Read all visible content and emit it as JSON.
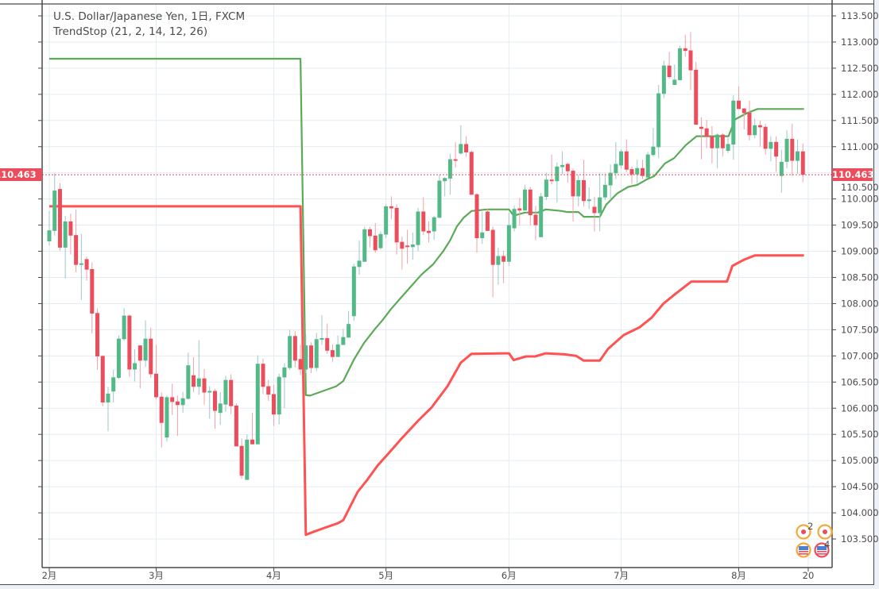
{
  "header": {
    "symbol_line": "U.S. Dollar/Japanese Yen, 1日, FXCM",
    "indicator_line": "TrendStop (21, 2, 14, 12, 26)"
  },
  "last_price": {
    "label": "110.463",
    "value": 110.463,
    "color": "#eb4d5c"
  },
  "events": {
    "badge_top": "2",
    "badge_bottom": "4"
  },
  "colors": {
    "up": "#53b987",
    "down": "#eb4d5c",
    "up_wick": "#9fc7c6",
    "down_wick": "#f3a0a9",
    "trend_green": "#5aaa57",
    "trend_red": "#ff5252",
    "grid": "#e3ecf2"
  },
  "chart_data": {
    "type": "candlestick",
    "title": "U.S. Dollar/Japanese Yen, 1日, FXCM",
    "ylim": [
      103.3,
      113.65
    ],
    "grid": true,
    "y_ticks": [
      "103.500",
      "104.000",
      "104.500",
      "105.000",
      "105.500",
      "106.000",
      "106.500",
      "107.000",
      "107.500",
      "108.000",
      "108.500",
      "109.000",
      "109.500",
      "110.000",
      "110.500",
      "111.000",
      "111.500",
      "112.000",
      "112.500",
      "113.000",
      "113.500"
    ],
    "x_ticks": [
      {
        "label": "2月",
        "bar": 0
      },
      {
        "label": "3月",
        "bar": 20
      },
      {
        "label": "4月",
        "bar": 42
      },
      {
        "label": "5月",
        "bar": 63
      },
      {
        "label": "6月",
        "bar": 86
      },
      {
        "label": "7月",
        "bar": 107
      },
      {
        "label": "8月",
        "bar": 129
      },
      {
        "label": "20",
        "bar": 142
      }
    ],
    "ohlc_fields": [
      "open",
      "high",
      "low",
      "close"
    ],
    "candles": [
      [
        109.19,
        109.77,
        109.11,
        109.4
      ],
      [
        109.39,
        110.49,
        109.3,
        110.16
      ],
      [
        110.19,
        110.3,
        109.01,
        109.07
      ],
      [
        109.07,
        109.68,
        108.48,
        109.57
      ],
      [
        109.57,
        109.72,
        108.94,
        109.3
      ],
      [
        109.31,
        109.8,
        108.6,
        108.74
      ],
      [
        108.74,
        109.33,
        108.07,
        108.77
      ],
      [
        108.85,
        108.9,
        108.44,
        108.65
      ],
      [
        108.66,
        108.79,
        107.43,
        107.81
      ],
      [
        107.82,
        107.91,
        106.73,
        106.99
      ],
      [
        107.0,
        107.01,
        106.04,
        106.11
      ],
      [
        106.11,
        106.41,
        105.56,
        106.28
      ],
      [
        106.32,
        106.74,
        106.11,
        106.59
      ],
      [
        106.58,
        107.39,
        106.56,
        107.33
      ],
      [
        107.32,
        107.91,
        107.29,
        107.77
      ],
      [
        107.77,
        107.79,
        106.6,
        106.74
      ],
      [
        106.74,
        107.13,
        106.51,
        106.86
      ],
      [
        107.2,
        107.2,
        106.38,
        106.91
      ],
      [
        106.91,
        107.68,
        106.79,
        107.33
      ],
      [
        107.33,
        107.54,
        106.58,
        106.65
      ],
      [
        106.66,
        107.21,
        106.17,
        106.21
      ],
      [
        106.22,
        106.3,
        105.25,
        105.72
      ],
      [
        105.44,
        106.24,
        105.36,
        106.21
      ],
      [
        106.21,
        106.47,
        105.87,
        106.12
      ],
      [
        106.13,
        106.24,
        105.47,
        106.06
      ],
      [
        106.06,
        106.31,
        105.91,
        106.19
      ],
      [
        106.18,
        107.06,
        106.17,
        106.82
      ],
      [
        106.63,
        106.98,
        106.31,
        106.41
      ],
      [
        106.41,
        107.3,
        106.26,
        106.57
      ],
      [
        106.57,
        106.75,
        106.07,
        106.3
      ],
      [
        106.3,
        106.42,
        105.8,
        106.33
      ],
      [
        106.33,
        106.37,
        105.61,
        105.95
      ],
      [
        105.91,
        106.31,
        105.68,
        106.09
      ],
      [
        106.07,
        106.62,
        105.93,
        106.54
      ],
      [
        106.54,
        106.65,
        105.89,
        106.04
      ],
      [
        106.05,
        106.09,
        105.27,
        105.27
      ],
      [
        105.28,
        105.42,
        104.65,
        104.71
      ],
      [
        104.63,
        105.5,
        104.63,
        105.4
      ],
      [
        105.4,
        105.91,
        105.31,
        105.31
      ],
      [
        105.31,
        107.01,
        105.31,
        106.85
      ],
      [
        106.85,
        106.94,
        106.27,
        106.41
      ],
      [
        106.42,
        106.54,
        106.14,
        106.26
      ],
      [
        106.27,
        106.45,
        105.66,
        105.88
      ],
      [
        105.88,
        106.66,
        105.69,
        106.6
      ],
      [
        106.59,
        106.86,
        106.0,
        106.78
      ],
      [
        106.77,
        107.5,
        106.73,
        107.38
      ],
      [
        107.38,
        107.47,
        106.78,
        106.91
      ],
      [
        106.94,
        107.21,
        106.63,
        106.74
      ],
      [
        106.74,
        107.41,
        106.67,
        107.2
      ],
      [
        107.2,
        107.26,
        106.67,
        106.77
      ],
      [
        106.77,
        107.44,
        106.71,
        107.32
      ],
      [
        107.31,
        107.78,
        107.21,
        107.34
      ],
      [
        107.34,
        107.62,
        107.04,
        107.1
      ],
      [
        107.11,
        107.22,
        106.89,
        106.98
      ],
      [
        106.98,
        107.39,
        106.98,
        107.22
      ],
      [
        107.21,
        107.52,
        107.21,
        107.36
      ],
      [
        107.35,
        107.86,
        107.35,
        107.61
      ],
      [
        107.76,
        108.76,
        107.67,
        108.71
      ],
      [
        108.7,
        109.21,
        108.55,
        108.82
      ],
      [
        108.8,
        109.47,
        108.8,
        109.42
      ],
      [
        109.42,
        109.47,
        109.08,
        109.29
      ],
      [
        109.3,
        109.54,
        108.97,
        109.02
      ],
      [
        109.06,
        109.38,
        109.03,
        109.33
      ],
      [
        109.32,
        109.9,
        109.25,
        109.86
      ],
      [
        109.86,
        110.05,
        109.61,
        109.82
      ],
      [
        109.83,
        109.9,
        108.94,
        109.17
      ],
      [
        109.18,
        109.28,
        108.65,
        109.05
      ],
      [
        109.11,
        109.41,
        108.76,
        109.08
      ],
      [
        109.08,
        109.36,
        108.84,
        109.13
      ],
      [
        109.12,
        109.83,
        109.0,
        109.76
      ],
      [
        109.76,
        110.03,
        109.31,
        109.38
      ],
      [
        109.39,
        109.57,
        109.17,
        109.35
      ],
      [
        109.38,
        109.68,
        109.22,
        109.65
      ],
      [
        109.64,
        110.46,
        109.64,
        110.35
      ],
      [
        110.34,
        110.42,
        110.05,
        110.4
      ],
      [
        110.39,
        110.87,
        110.08,
        110.76
      ],
      [
        110.76,
        111.09,
        110.6,
        110.73
      ],
      [
        110.87,
        111.41,
        110.85,
        111.05
      ],
      [
        111.05,
        111.2,
        110.81,
        110.89
      ],
      [
        110.9,
        110.93,
        110.08,
        110.08
      ],
      [
        110.09,
        110.11,
        108.97,
        109.25
      ],
      [
        109.25,
        109.75,
        109.14,
        109.36
      ],
      [
        109.76,
        109.81,
        109.39,
        109.39
      ],
      [
        109.41,
        109.47,
        108.12,
        108.74
      ],
      [
        108.74,
        109.07,
        108.36,
        108.91
      ],
      [
        108.91,
        109.01,
        108.39,
        108.8
      ],
      [
        108.8,
        109.74,
        108.72,
        109.5
      ],
      [
        109.44,
        109.87,
        109.38,
        109.81
      ],
      [
        109.82,
        110.02,
        109.49,
        109.78
      ],
      [
        109.78,
        110.27,
        109.78,
        110.18
      ],
      [
        110.18,
        110.23,
        109.49,
        109.69
      ],
      [
        109.7,
        109.87,
        109.21,
        109.5
      ],
      [
        109.27,
        110.12,
        109.27,
        110.05
      ],
      [
        110.04,
        110.5,
        109.98,
        110.37
      ],
      [
        110.37,
        110.85,
        110.28,
        110.34
      ],
      [
        110.34,
        110.7,
        109.93,
        110.62
      ],
      [
        110.61,
        110.91,
        110.47,
        110.65
      ],
      [
        110.67,
        110.69,
        110.31,
        110.53
      ],
      [
        110.54,
        110.58,
        109.57,
        110.05
      ],
      [
        110.05,
        110.46,
        109.86,
        110.36
      ],
      [
        110.36,
        110.75,
        109.86,
        109.96
      ],
      [
        109.96,
        110.22,
        109.81,
        109.99
      ],
      [
        109.85,
        110.04,
        109.38,
        109.73
      ],
      [
        109.73,
        110.49,
        109.38,
        110.03
      ],
      [
        110.03,
        110.49,
        109.98,
        110.27
      ],
      [
        110.26,
        110.66,
        109.98,
        110.5
      ],
      [
        110.49,
        111.09,
        110.38,
        110.67
      ],
      [
        110.64,
        110.95,
        110.58,
        110.91
      ],
      [
        110.91,
        111.14,
        110.51,
        110.56
      ],
      [
        110.57,
        110.62,
        110.29,
        110.47
      ],
      [
        110.47,
        110.75,
        110.29,
        110.59
      ],
      [
        110.59,
        110.75,
        110.38,
        110.44
      ],
      [
        110.41,
        110.9,
        110.41,
        110.85
      ],
      [
        110.84,
        111.36,
        110.81,
        111.0
      ],
      [
        110.99,
        112.18,
        110.78,
        112.02
      ],
      [
        112.01,
        112.64,
        111.93,
        112.55
      ],
      [
        112.55,
        112.81,
        112.3,
        112.33
      ],
      [
        112.18,
        112.57,
        112.18,
        112.28
      ],
      [
        112.27,
        112.93,
        112.27,
        112.88
      ],
      [
        112.88,
        113.14,
        112.72,
        112.83
      ],
      [
        112.84,
        113.19,
        112.08,
        112.46
      ],
      [
        112.47,
        112.62,
        111.42,
        111.42
      ],
      [
        111.38,
        111.56,
        110.76,
        111.34
      ],
      [
        111.35,
        111.51,
        110.97,
        111.19
      ],
      [
        111.2,
        111.39,
        110.68,
        110.97
      ],
      [
        110.97,
        111.26,
        110.59,
        111.23
      ],
      [
        111.23,
        111.26,
        110.81,
        110.97
      ],
      [
        110.92,
        111.17,
        110.88,
        111.05
      ],
      [
        111.04,
        111.98,
        110.75,
        111.88
      ],
      [
        111.88,
        112.15,
        111.72,
        111.72
      ],
      [
        111.73,
        111.74,
        111.33,
        111.64
      ],
      [
        111.65,
        111.88,
        111.12,
        111.22
      ],
      [
        111.22,
        111.54,
        111.16,
        111.41
      ],
      [
        111.41,
        111.5,
        111.0,
        111.37
      ],
      [
        111.38,
        111.44,
        110.85,
        110.96
      ],
      [
        110.96,
        111.2,
        110.72,
        111.09
      ],
      [
        111.09,
        111.2,
        110.52,
        110.81
      ],
      [
        110.44,
        110.94,
        110.12,
        110.71
      ],
      [
        110.71,
        111.32,
        110.59,
        111.15
      ],
      [
        111.15,
        111.44,
        110.44,
        110.73
      ],
      [
        110.73,
        111.14,
        110.48,
        110.91
      ],
      [
        110.91,
        111.06,
        110.32,
        110.463
      ]
    ],
    "lines": [
      {
        "color": "#5aaa57",
        "points": [
          [
            0,
            112.68
          ],
          [
            47,
            112.68
          ],
          [
            48,
            106.25
          ],
          [
            48.8,
            106.24
          ],
          [
            53.7,
            106.42
          ],
          [
            55,
            106.52
          ],
          [
            57,
            106.93
          ],
          [
            58.9,
            107.25
          ],
          [
            60.9,
            107.51
          ],
          [
            62.4,
            107.69
          ],
          [
            63.9,
            107.89
          ],
          [
            65.6,
            108.09
          ],
          [
            67.6,
            108.32
          ],
          [
            69.6,
            108.55
          ],
          [
            71.8,
            108.75
          ],
          [
            73.7,
            109.0
          ],
          [
            75,
            109.21
          ],
          [
            76.3,
            109.48
          ],
          [
            77.5,
            109.64
          ],
          [
            79,
            109.77
          ],
          [
            81.9,
            109.8
          ],
          [
            86,
            109.8
          ],
          [
            86.9,
            109.68
          ],
          [
            89,
            109.74
          ],
          [
            91.4,
            109.74
          ],
          [
            92.9,
            109.8
          ],
          [
            95.9,
            109.77
          ],
          [
            96.8,
            109.75
          ],
          [
            99,
            109.75
          ],
          [
            100,
            109.66
          ],
          [
            103,
            109.66
          ],
          [
            104.2,
            109.89
          ],
          [
            106.3,
            110.11
          ],
          [
            108.3,
            110.23
          ],
          [
            110,
            110.27
          ],
          [
            111.7,
            110.37
          ],
          [
            113.2,
            110.44
          ],
          [
            115.2,
            110.68
          ],
          [
            116.9,
            110.78
          ],
          [
            119.1,
            111.03
          ],
          [
            121.1,
            111.2
          ],
          [
            127.1,
            111.2
          ],
          [
            128.3,
            111.52
          ],
          [
            130.5,
            111.64
          ],
          [
            132.5,
            111.72
          ],
          [
            141.2,
            111.72
          ]
        ]
      },
      {
        "color": "#ff5252",
        "points": [
          [
            0,
            109.86
          ],
          [
            47,
            109.86
          ],
          [
            48,
            103.58
          ],
          [
            49.5,
            103.64
          ],
          [
            51.7,
            103.72
          ],
          [
            54,
            103.8
          ],
          [
            55,
            103.86
          ],
          [
            56.2,
            104.1
          ],
          [
            57.7,
            104.4
          ],
          [
            59.5,
            104.63
          ],
          [
            61.4,
            104.9
          ],
          [
            63.6,
            105.15
          ],
          [
            65.9,
            105.42
          ],
          [
            69.1,
            105.77
          ],
          [
            71.5,
            106.01
          ],
          [
            74.5,
            106.42
          ],
          [
            77,
            106.87
          ],
          [
            79,
            107.04
          ],
          [
            86,
            107.05
          ],
          [
            86.9,
            106.92
          ],
          [
            89.2,
            106.99
          ],
          [
            90.9,
            106.99
          ],
          [
            92.9,
            107.05
          ],
          [
            96.4,
            107.03
          ],
          [
            98.6,
            107.0
          ],
          [
            100,
            106.91
          ],
          [
            103,
            106.91
          ],
          [
            104.5,
            107.13
          ],
          [
            107.5,
            107.4
          ],
          [
            110.5,
            107.55
          ],
          [
            112.7,
            107.73
          ],
          [
            114.9,
            108.0
          ],
          [
            117.2,
            108.19
          ],
          [
            120.1,
            108.42
          ],
          [
            126.8,
            108.42
          ],
          [
            127.8,
            108.72
          ],
          [
            130,
            108.84
          ],
          [
            132,
            108.92
          ],
          [
            141.2,
            108.92
          ]
        ]
      }
    ]
  }
}
